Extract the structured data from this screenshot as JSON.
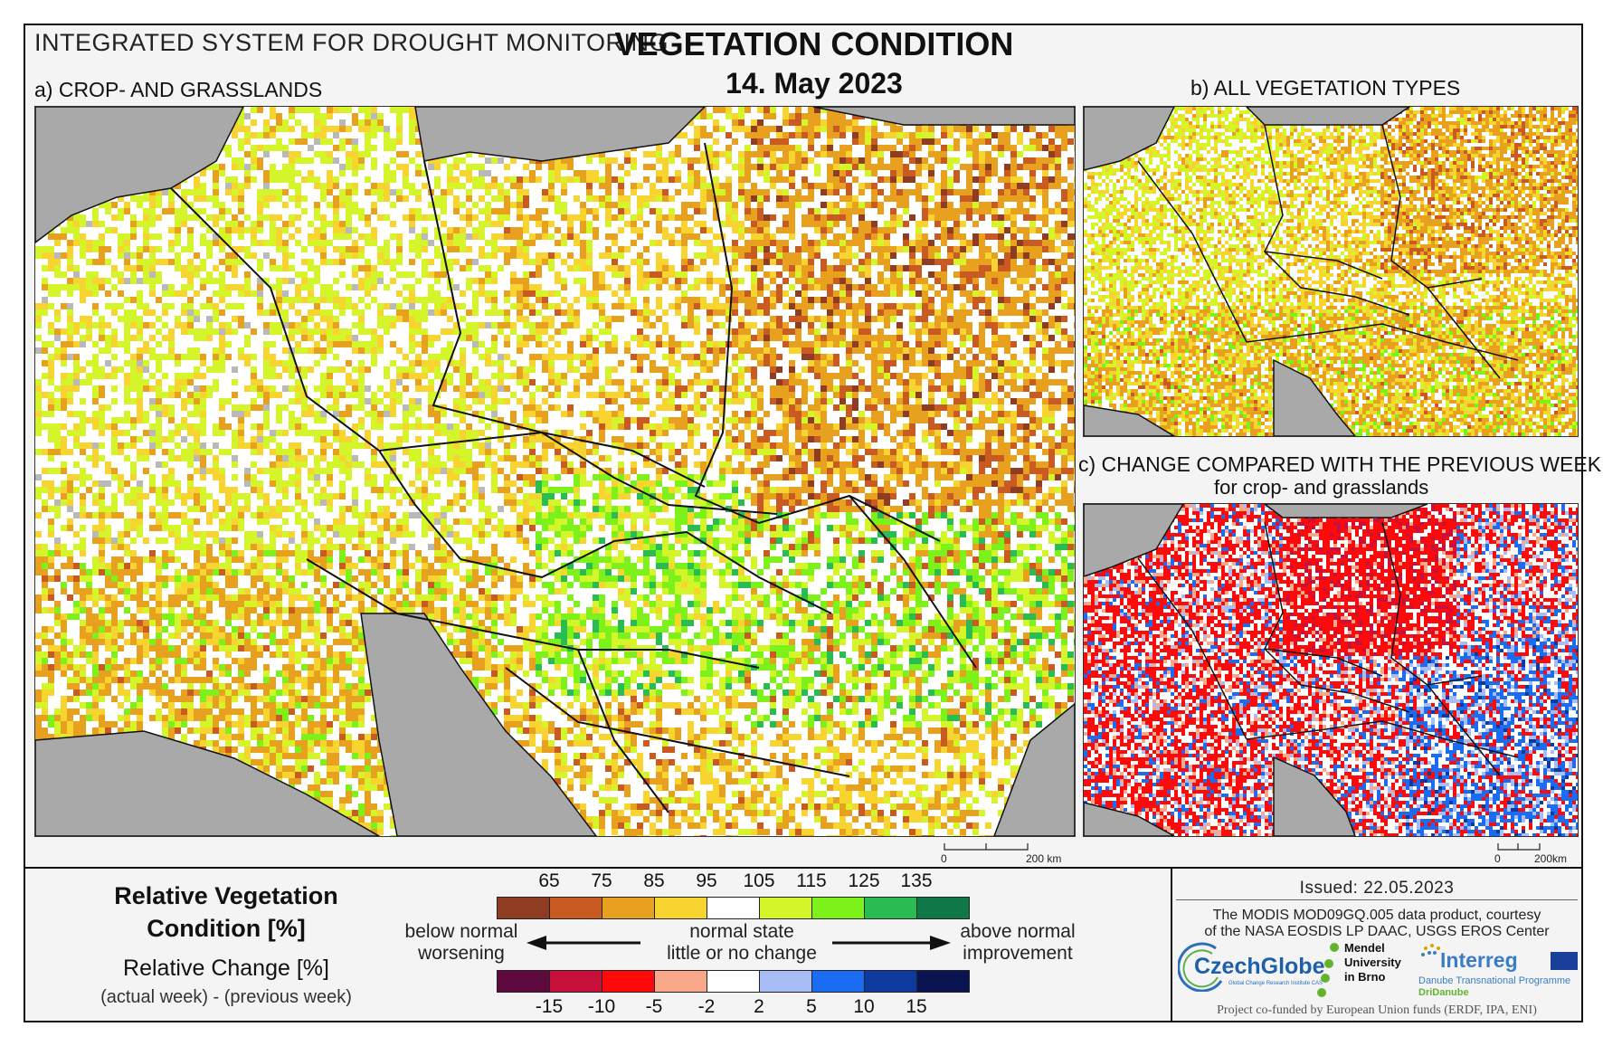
{
  "header": {
    "system_title": "INTEGRATED SYSTEM FOR DROUGHT MONITORING",
    "title": "VEGETATION CONDITION",
    "date": "14. May 2023"
  },
  "panels": {
    "a_label": "a) CROP- AND GRASSLANDS",
    "b_label": "b) ALL VEGETATION TYPES",
    "c_label_line1": "c) CHANGE COMPARED WITH THE PREVIOUS WEEK",
    "c_label_line2": "for crop- and grasslands"
  },
  "scalebars": {
    "a": {
      "zero": "0",
      "end": "200 km"
    },
    "c": {
      "zero": "0",
      "end": "200km"
    }
  },
  "legend": {
    "rvc_title": "Relative Vegetation Condition [%]",
    "rc_title": "Relative Change [%]",
    "rc_subtitle": "(actual week) - (previous week)",
    "left_text_1": "below normal",
    "left_text_2": "worsening",
    "center_text_1": "normal state",
    "center_text_2": "little or no change",
    "right_text_1": "above normal",
    "right_text_2": "improvement",
    "rvc_ticks": [
      "65",
      "75",
      "85",
      "95",
      "105",
      "115",
      "125",
      "135"
    ],
    "rvc_colors": [
      "#8e3c22",
      "#c85a22",
      "#e8a11e",
      "#f7d430",
      "#ffffff",
      "#d4f52a",
      "#7cf21a",
      "#28bc52",
      "#107848"
    ],
    "rc_ticks": [
      "-15",
      "-10",
      "-5",
      "-2",
      "2",
      "5",
      "10",
      "15"
    ],
    "rc_colors": [
      "#5e0a3e",
      "#c8103c",
      "#ff0a0a",
      "#f9a98a",
      "#ffffff",
      "#a8bcf5",
      "#1a6cf2",
      "#0c3a9e",
      "#0a1450"
    ]
  },
  "info": {
    "issued": "Issued: 22.05.2023",
    "source_line1": "The MODIS MOD09GQ.005 data product, courtesy",
    "source_line2": "of the NASA EOSDIS LP DAAC, USGS EROS Center",
    "funding": "Project co-funded by European Union funds (ERDF, IPA, ENI)"
  },
  "logos": {
    "czechglobe": "CzechGlobe",
    "czechglobe_sub": "Global Change Research Institute CAS",
    "mendel_1": "Mendel",
    "mendel_2": "University",
    "mendel_3": "in Brno",
    "interreg": "Interreg",
    "interreg_sub1": "Danube Transnational Programme",
    "interreg_sub2": "DriDanube"
  },
  "colors": {
    "land_gray": "#a9a9a9",
    "border": "#111111"
  }
}
